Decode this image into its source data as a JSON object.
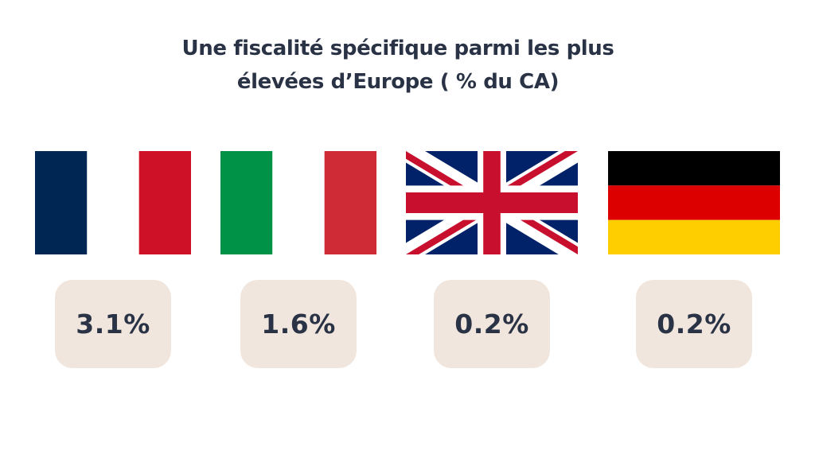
{
  "chart_data": {
    "type": "table",
    "title_line1": "Une fiscalité spécifique parmi les plus",
    "title_line2": "élevées d’Europe ( % du CA)",
    "categories": [
      "France",
      "Italie",
      "Royaume-Uni",
      "Allemagne"
    ],
    "values": [
      3.1,
      1.6,
      0.2,
      0.2
    ],
    "value_labels": [
      "3.1%",
      "1.6%",
      "0.2%",
      "0.2%"
    ]
  },
  "flags": [
    {
      "icon": "france-flag-icon",
      "colors": [
        "#002654",
        "#ffffff",
        "#ce1126"
      ]
    },
    {
      "icon": "italy-flag-icon",
      "colors": [
        "#009246",
        "#ffffff",
        "#ce2b37"
      ]
    },
    {
      "icon": "uk-flag-icon",
      "colors": [
        "#012169",
        "#ffffff",
        "#c8102e"
      ]
    },
    {
      "icon": "germany-flag-icon",
      "colors": [
        "#000000",
        "#dd0000",
        "#ffce00"
      ]
    }
  ],
  "colors": {
    "badge_background": "#f1e6de",
    "text": "#2a3345"
  }
}
